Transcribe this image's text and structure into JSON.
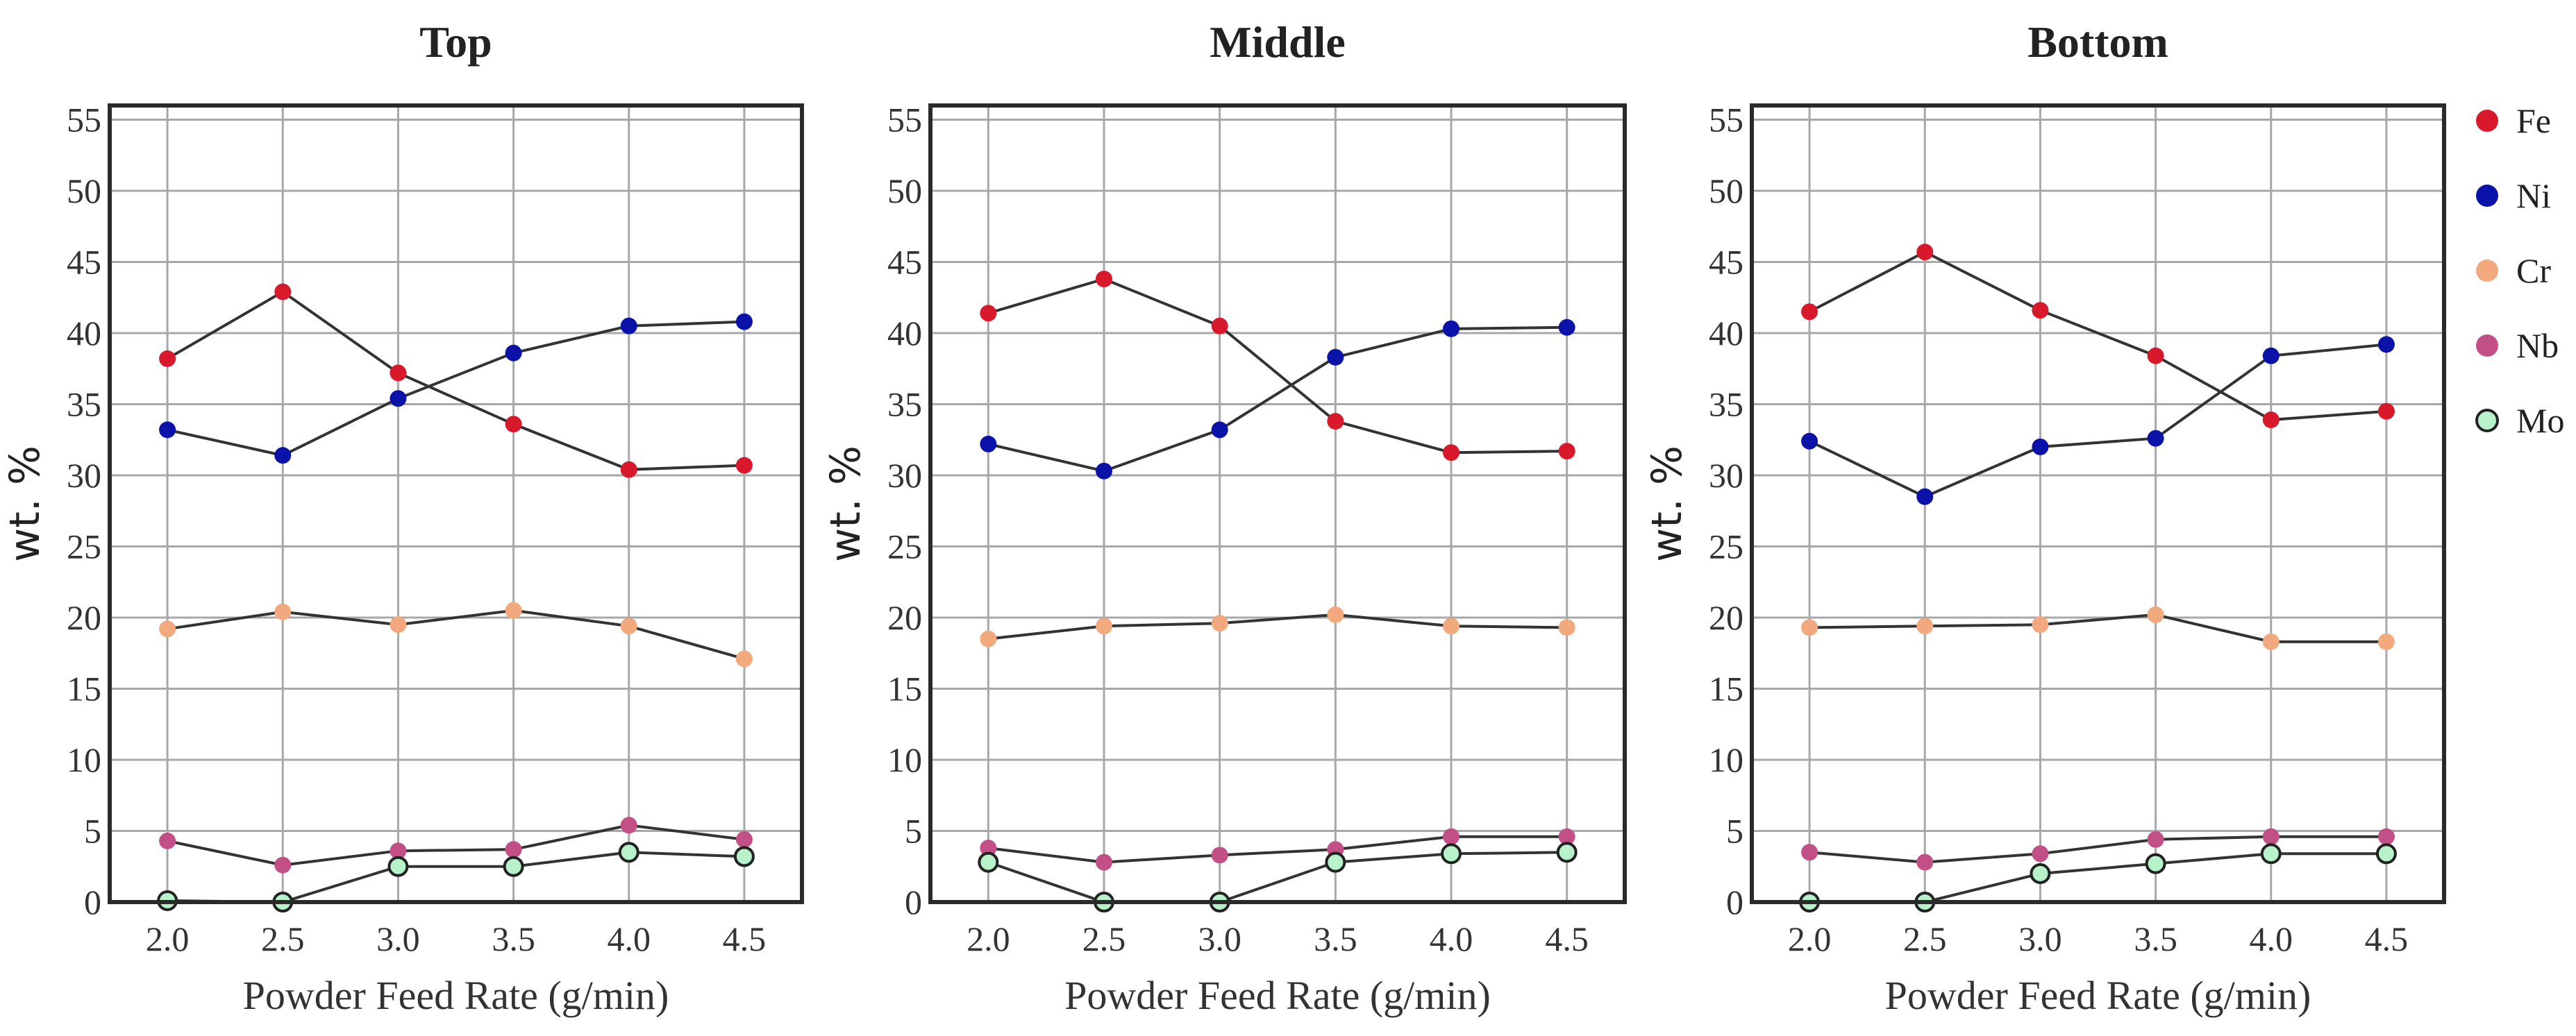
{
  "chart_data": [
    {
      "type": "line",
      "title": "Top",
      "xlabel": "Powder Feed Rate (g/min)",
      "ylabel": "wt. %",
      "x": [
        2.0,
        2.5,
        3.0,
        3.5,
        4.0,
        4.5
      ],
      "x_tick_labels": [
        "2.0",
        "2.5",
        "3.0",
        "3.5",
        "4.0",
        "4.5"
      ],
      "xlim": [
        1.75,
        4.75
      ],
      "ylim": [
        0,
        56
      ],
      "y_ticks": [
        0,
        5,
        10,
        15,
        20,
        25,
        30,
        35,
        40,
        45,
        50,
        55
      ],
      "grid": true,
      "series": [
        {
          "name": "Fe",
          "color": "#d7192b",
          "values": [
            38.2,
            42.9,
            37.2,
            33.6,
            30.4,
            30.7
          ]
        },
        {
          "name": "Ni",
          "color": "#0a12a8",
          "values": [
            33.2,
            31.4,
            35.4,
            38.6,
            40.5,
            40.8
          ]
        },
        {
          "name": "Cr",
          "color": "#f3a97e",
          "values": [
            19.2,
            20.4,
            19.5,
            20.5,
            19.4,
            17.1
          ]
        },
        {
          "name": "Nb",
          "color": "#c24f86",
          "values": [
            4.3,
            2.6,
            3.6,
            3.7,
            5.4,
            4.4
          ]
        },
        {
          "name": "Mo",
          "color": "#b8f2cb",
          "values": [
            0.1,
            0.0,
            2.5,
            2.5,
            3.5,
            3.2
          ]
        }
      ]
    },
    {
      "type": "line",
      "title": "Middle",
      "xlabel": "Powder Feed Rate (g/min)",
      "ylabel": "wt. %",
      "x": [
        2.0,
        2.5,
        3.0,
        3.5,
        4.0,
        4.5
      ],
      "x_tick_labels": [
        "2.0",
        "2.5",
        "3.0",
        "3.5",
        "4.0",
        "4.5"
      ],
      "xlim": [
        1.75,
        4.75
      ],
      "ylim": [
        0,
        56
      ],
      "y_ticks": [
        0,
        5,
        10,
        15,
        20,
        25,
        30,
        35,
        40,
        45,
        50,
        55
      ],
      "grid": true,
      "series": [
        {
          "name": "Fe",
          "color": "#d7192b",
          "values": [
            41.4,
            43.8,
            40.5,
            33.8,
            31.6,
            31.7
          ]
        },
        {
          "name": "Ni",
          "color": "#0a12a8",
          "values": [
            32.2,
            30.3,
            33.2,
            38.3,
            40.3,
            40.4
          ]
        },
        {
          "name": "Cr",
          "color": "#f3a97e",
          "values": [
            18.5,
            19.4,
            19.6,
            20.2,
            19.4,
            19.3
          ]
        },
        {
          "name": "Nb",
          "color": "#c24f86",
          "values": [
            3.8,
            2.8,
            3.3,
            3.7,
            4.6,
            4.6
          ]
        },
        {
          "name": "Mo",
          "color": "#b8f2cb",
          "values": [
            2.8,
            0.0,
            0.0,
            2.8,
            3.4,
            3.5
          ]
        }
      ]
    },
    {
      "type": "line",
      "title": "Bottom",
      "xlabel": "Powder Feed Rate (g/min)",
      "ylabel": "wt. %",
      "x": [
        2.0,
        2.5,
        3.0,
        3.5,
        4.0,
        4.5
      ],
      "x_tick_labels": [
        "2.0",
        "2.5",
        "3.0",
        "3.5",
        "4.0",
        "4.5"
      ],
      "xlim": [
        1.75,
        4.75
      ],
      "ylim": [
        0,
        56
      ],
      "y_ticks": [
        0,
        5,
        10,
        15,
        20,
        25,
        30,
        35,
        40,
        45,
        50,
        55
      ],
      "grid": true,
      "series": [
        {
          "name": "Fe",
          "color": "#d7192b",
          "values": [
            41.5,
            45.7,
            41.6,
            38.4,
            33.9,
            34.5
          ]
        },
        {
          "name": "Ni",
          "color": "#0a12a8",
          "values": [
            32.4,
            28.5,
            32.0,
            32.6,
            38.4,
            39.2
          ]
        },
        {
          "name": "Cr",
          "color": "#f3a97e",
          "values": [
            19.3,
            19.4,
            19.5,
            20.2,
            18.3,
            18.3
          ]
        },
        {
          "name": "Nb",
          "color": "#c24f86",
          "values": [
            3.5,
            2.8,
            3.4,
            4.4,
            4.6,
            4.6
          ]
        },
        {
          "name": "Mo",
          "color": "#b8f2cb",
          "values": [
            0.0,
            0.0,
            2.0,
            2.7,
            3.4,
            3.4
          ]
        }
      ]
    }
  ],
  "legend": {
    "position": "right",
    "items": [
      {
        "name": "Fe",
        "color": "#d7192b",
        "outlined": false
      },
      {
        "name": "Ni",
        "color": "#0a12a8",
        "outlined": false
      },
      {
        "name": "Cr",
        "color": "#f3a97e",
        "outlined": false
      },
      {
        "name": "Nb",
        "color": "#c24f86",
        "outlined": false
      },
      {
        "name": "Mo",
        "color": "#b8f2cb",
        "outlined": true
      }
    ]
  },
  "style": {
    "line_color": "#333333",
    "grid_color": "#a8a8a8",
    "frame_color": "#2a2a2a",
    "marker_outline_color": "#222222"
  }
}
